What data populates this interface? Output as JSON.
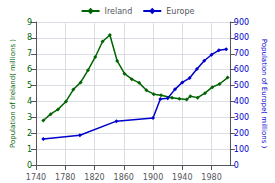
{
  "chart_data": {
    "type": "line",
    "series": [
      {
        "name": "Ireland",
        "color": "#006400",
        "marker": "diamond",
        "x": [
          1750,
          1760,
          1770,
          1781,
          1791,
          1801,
          1811,
          1821,
          1831,
          1841,
          1851,
          1861,
          1871,
          1881,
          1891,
          1901,
          1911,
          1926,
          1936,
          1946,
          1951,
          1961,
          1971,
          1981,
          1991,
          2002
        ],
        "values": [
          2.8,
          3.2,
          3.5,
          4.0,
          4.75,
          5.2,
          5.96,
          6.8,
          7.77,
          8.18,
          6.55,
          5.75,
          5.4,
          5.17,
          4.7,
          4.46,
          4.39,
          4.23,
          4.17,
          4.12,
          4.33,
          4.24,
          4.52,
          4.9,
          5.1,
          5.5
        ]
      },
      {
        "name": "Europe",
        "color": "#0000cc",
        "marker": "diamond",
        "axis": "y2",
        "x": [
          1750,
          1800,
          1850,
          1900,
          1910,
          1920,
          1930,
          1940,
          1950,
          1960,
          1970,
          1980,
          1990,
          2000
        ],
        "values": [
          163,
          187,
          276,
          296,
          415,
          420,
          476,
          520,
          547,
          604,
          656,
          694,
          722,
          729
        ]
      }
    ],
    "xlim": [
      1740,
      2005
    ],
    "xticks": [
      1740,
      1780,
      1820,
      1860,
      1900,
      1940,
      1980
    ],
    "ylim": [
      0,
      9
    ],
    "yticks": [
      0,
      1,
      2,
      3,
      4,
      5,
      6,
      7,
      8,
      9
    ],
    "y2lim": [
      0,
      900
    ],
    "y2ticks": [
      0,
      100,
      200,
      300,
      400,
      500,
      600,
      700,
      800,
      900
    ],
    "ylabel": "Population of Ireland( millions )",
    "y2label": "Population of Europe( millions )",
    "grid": true,
    "legend": "top"
  }
}
